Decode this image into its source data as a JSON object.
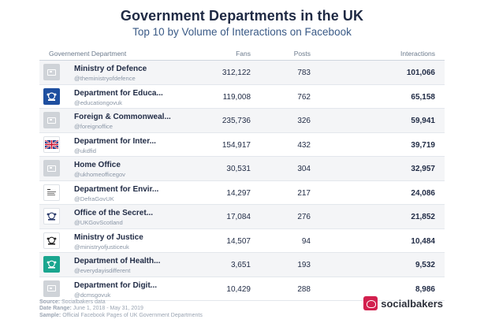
{
  "header": {
    "title": "Government Departments in the UK",
    "subtitle": "Top 10 by Volume of Interactions on Facebook"
  },
  "table": {
    "columns": {
      "department": "Governement Department",
      "fans": "Fans",
      "posts": "Posts",
      "interactions": "Interactions"
    },
    "rows": [
      {
        "name": "Ministry of Defence",
        "handle": "@theministryofdefence",
        "fans": "312,122",
        "posts": "783",
        "interactions": "101,066",
        "logo": "placeholder-image-icon"
      },
      {
        "name": "Department for Educa...",
        "handle": "@educationgovuk",
        "fans": "119,008",
        "posts": "762",
        "interactions": "65,158",
        "logo": "royal-crest-icon"
      },
      {
        "name": "Foreign & Commonweal...",
        "handle": "@foreignoffice",
        "fans": "235,736",
        "posts": "326",
        "interactions": "59,941",
        "logo": "placeholder-image-icon"
      },
      {
        "name": "Department for Inter...",
        "handle": "@ukdfid",
        "fans": "154,917",
        "posts": "432",
        "interactions": "39,719",
        "logo": "ukaid-flag-icon"
      },
      {
        "name": "Home Office",
        "handle": "@ukhomeofficegov",
        "fans": "30,531",
        "posts": "304",
        "interactions": "32,957",
        "logo": "placeholder-image-icon"
      },
      {
        "name": "Department for Envir...",
        "handle": "@DefraGovUK",
        "fans": "14,297",
        "posts": "217",
        "interactions": "24,086",
        "logo": "defra-logo-icon"
      },
      {
        "name": "Office of the Secret...",
        "handle": "@UKGovScotland",
        "fans": "17,084",
        "posts": "276",
        "interactions": "21,852",
        "logo": "royal-crest-icon"
      },
      {
        "name": "Ministry of Justice",
        "handle": "@ministryofjusticeuk",
        "fans": "14,507",
        "posts": "94",
        "interactions": "10,484",
        "logo": "royal-crest-icon"
      },
      {
        "name": "Department of Health...",
        "handle": "@everydayisdifferent",
        "fans": "3,651",
        "posts": "193",
        "interactions": "9,532",
        "logo": "royal-crest-icon"
      },
      {
        "name": "Department for Digit...",
        "handle": "@dcmsgovuk",
        "fans": "10,429",
        "posts": "288",
        "interactions": "8,986",
        "logo": "placeholder-image-icon"
      }
    ]
  },
  "footer": {
    "source_label": "Source:",
    "source_value": "Socialbakers data",
    "range_label": "Date Range:",
    "range_value": "June 1, 2018 - May 31, 2019",
    "sample_label": "Sample:",
    "sample_value": "Official Facebook Pages of UK Government Departments"
  },
  "brand": {
    "name": "socialbakers",
    "color": "#d2204e"
  },
  "colors": {
    "title": "#1f2a44",
    "subtitle": "#3a5a86",
    "row_shade": "#f4f5f7",
    "dfe_logo": "#1e4fa0",
    "health_logo": "#1aa68f"
  }
}
